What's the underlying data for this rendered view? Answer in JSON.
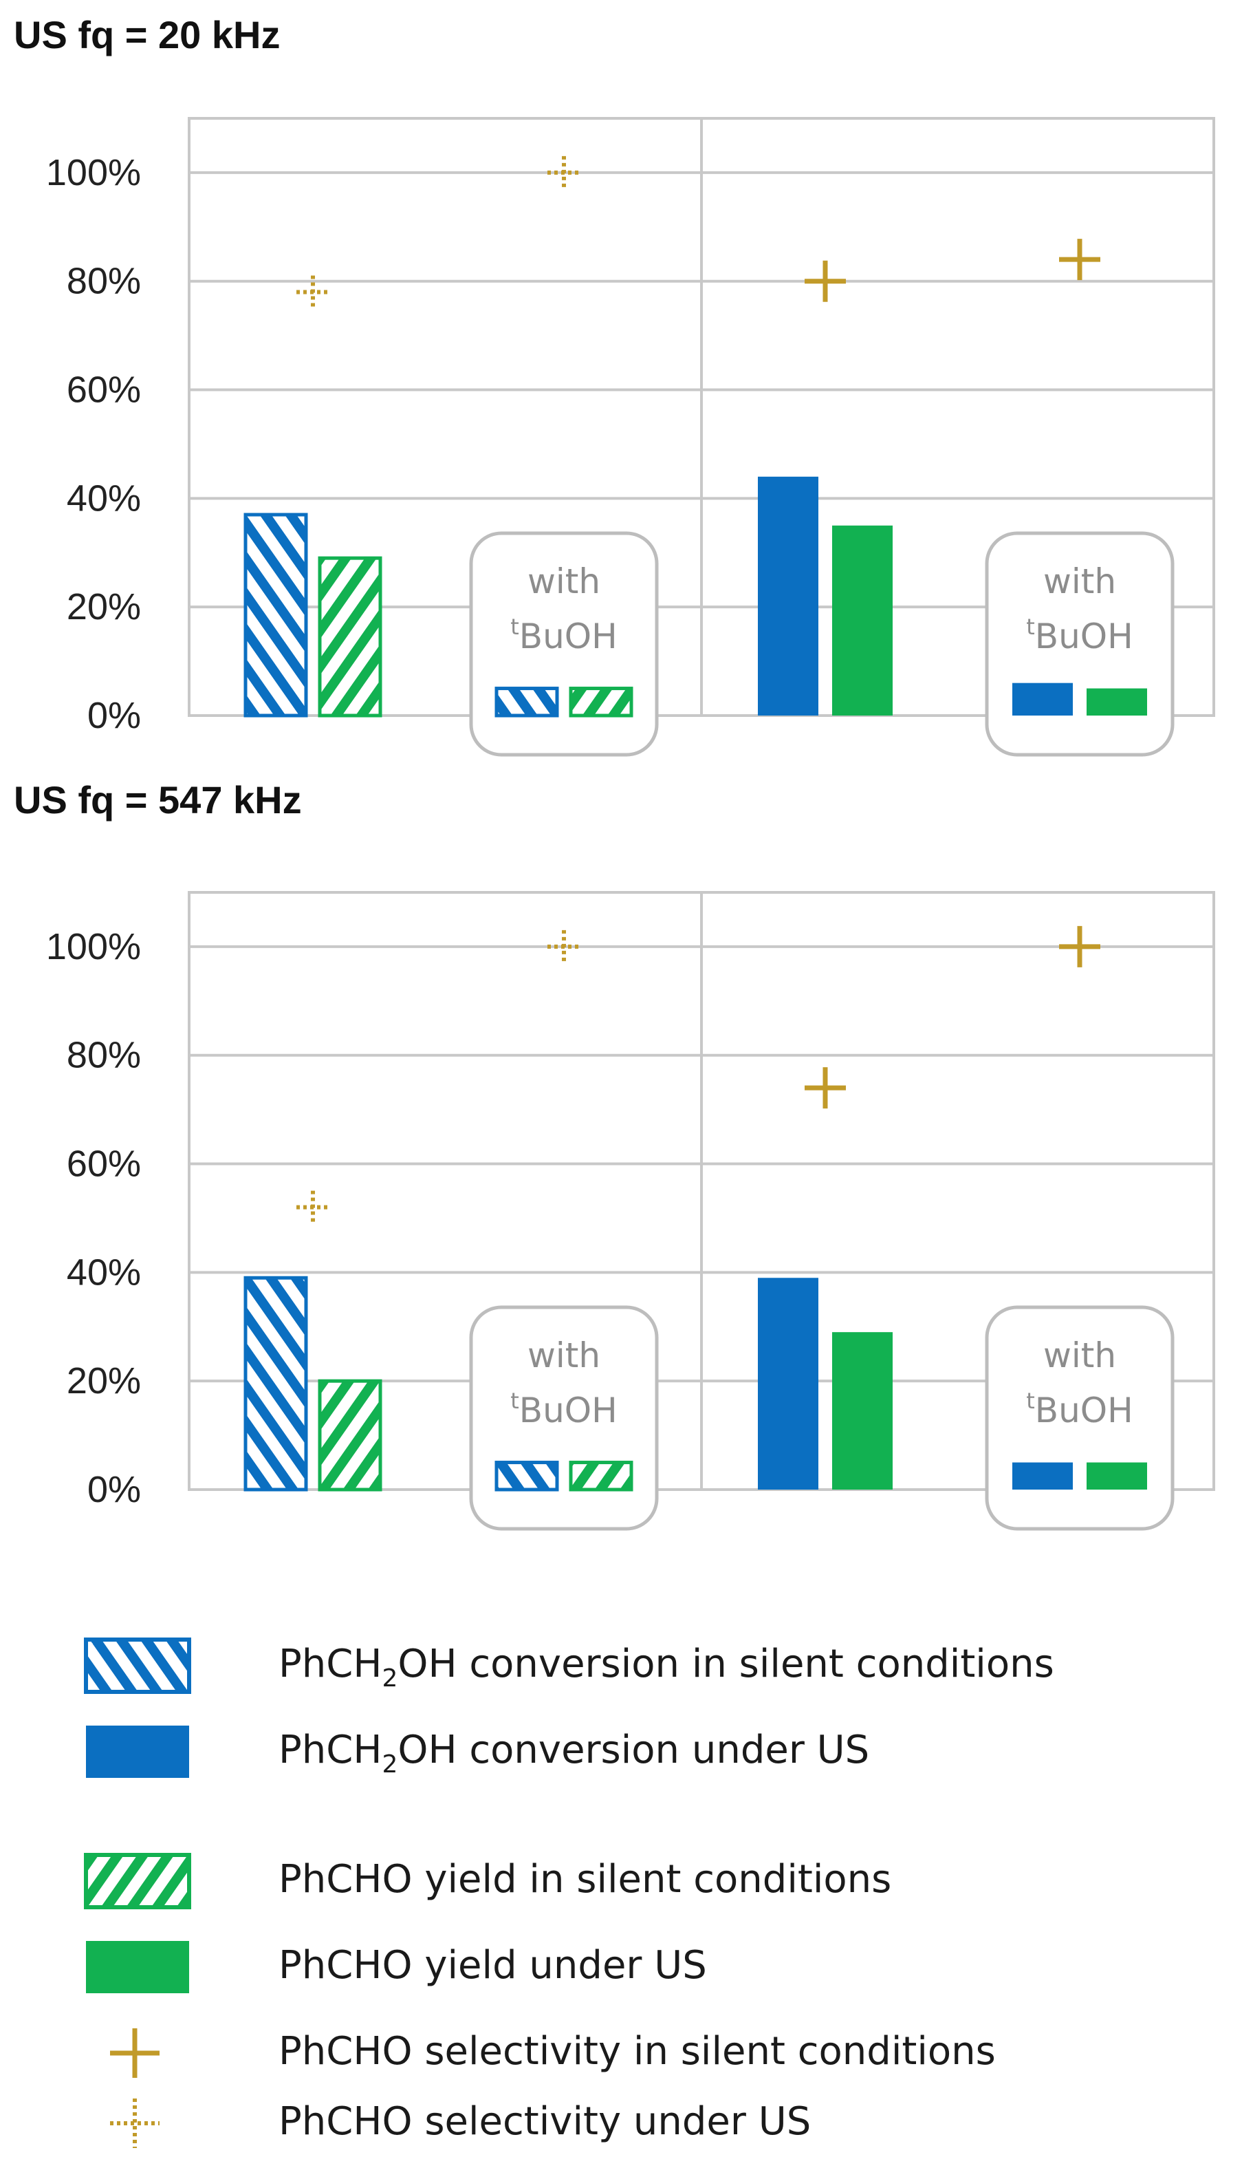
{
  "colors": {
    "conversion_blue": "#0b6fc1",
    "yield_green": "#12b151",
    "selectivity_gold": "#c19a29",
    "grid": "#c8c8c8",
    "bubble_border": "#bdbdbd",
    "with_text": "#8c8c8c"
  },
  "chart_data": [
    {
      "type": "bar",
      "title": "US fq = 20 kHz",
      "ylim": [
        0,
        1.1
      ],
      "y_ticks": [
        "0%",
        "20%",
        "40%",
        "60%",
        "80%",
        "100%"
      ],
      "grid": true,
      "groups": [
        {
          "condition": "silent",
          "tbuoh": false,
          "conversion": 0.37,
          "yield": 0.29,
          "selectivity": 0.78
        },
        {
          "condition": "silent",
          "tbuoh": true,
          "conversion": 0.05,
          "yield": 0.05,
          "selectivity": 1.0
        },
        {
          "condition": "US",
          "tbuoh": false,
          "conversion": 0.44,
          "yield": 0.35,
          "selectivity": 0.8
        },
        {
          "condition": "US",
          "tbuoh": true,
          "conversion": 0.06,
          "yield": 0.05,
          "selectivity": 0.84
        }
      ],
      "bubble_labels": [
        {
          "with": "with",
          "sup": "t",
          "reagent": "BuOH"
        },
        {
          "with": "with",
          "sup": "t",
          "reagent": "BuOH"
        }
      ]
    },
    {
      "type": "bar",
      "title": "US fq = 547 kHz",
      "ylim": [
        0,
        1.1
      ],
      "y_ticks": [
        "0%",
        "20%",
        "40%",
        "60%",
        "80%",
        "100%"
      ],
      "grid": true,
      "groups": [
        {
          "condition": "silent",
          "tbuoh": false,
          "conversion": 0.39,
          "yield": 0.2,
          "selectivity": 0.52
        },
        {
          "condition": "silent",
          "tbuoh": true,
          "conversion": 0.05,
          "yield": 0.05,
          "selectivity": 1.0
        },
        {
          "condition": "US",
          "tbuoh": false,
          "conversion": 0.39,
          "yield": 0.29,
          "selectivity": 0.74
        },
        {
          "condition": "US",
          "tbuoh": true,
          "conversion": 0.05,
          "yield": 0.05,
          "selectivity": 1.0
        }
      ],
      "bubble_labels": [
        {
          "with": "with",
          "sup": "t",
          "reagent": "BuOH"
        },
        {
          "with": "with",
          "sup": "t",
          "reagent": "BuOH"
        }
      ]
    }
  ],
  "legend": [
    {
      "key": "conv_silent",
      "mark": "hatch-right",
      "color": "conversion_blue",
      "pre": "PhCH",
      "sub": "2",
      "post": "OH conversion in silent conditions"
    },
    {
      "key": "conv_us",
      "mark": "solid",
      "color": "conversion_blue",
      "pre": "PhCH",
      "sub": "2",
      "post": "OH conversion under US"
    },
    {
      "key": "yield_silent",
      "mark": "hatch-left",
      "color": "yield_green",
      "pre": "PhCHO yield in silent conditions",
      "sub": "",
      "post": ""
    },
    {
      "key": "yield_us",
      "mark": "solid",
      "color": "yield_green",
      "pre": "PhCHO yield under US",
      "sub": "",
      "post": ""
    },
    {
      "key": "sel_silent",
      "mark": "plus",
      "color": "selectivity_gold",
      "pre": "PhCHO selectivity in silent conditions",
      "sub": "",
      "post": ""
    },
    {
      "key": "sel_us",
      "mark": "plus-dotted",
      "color": "selectivity_gold",
      "pre": "PhCHO selectivity under US",
      "sub": "",
      "post": ""
    }
  ]
}
